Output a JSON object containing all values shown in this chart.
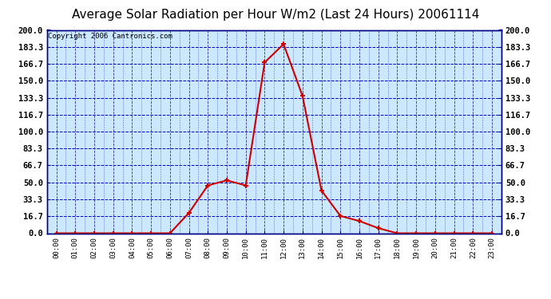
{
  "title": "Average Solar Radiation per Hour W/m2 (Last 24 Hours) 20061114",
  "copyright": "Copyright 2006 Cantronics.com",
  "hours": [
    0,
    1,
    2,
    3,
    4,
    5,
    6,
    7,
    8,
    9,
    10,
    11,
    12,
    13,
    14,
    15,
    16,
    17,
    18,
    19,
    20,
    21,
    22,
    23
  ],
  "hour_labels": [
    "00:00",
    "01:00",
    "02:00",
    "03:00",
    "04:00",
    "05:00",
    "06:00",
    "07:00",
    "08:00",
    "09:00",
    "10:00",
    "11:00",
    "12:00",
    "13:00",
    "14:00",
    "15:00",
    "16:00",
    "17:00",
    "18:00",
    "19:00",
    "20:00",
    "21:00",
    "22:00",
    "23:00"
  ],
  "values": [
    0,
    0,
    0,
    0,
    0,
    0,
    0,
    20,
    47,
    52,
    47,
    168,
    186,
    135,
    42,
    17,
    12,
    5,
    0,
    0,
    0,
    0,
    0,
    0
  ],
  "ylim": [
    0,
    200
  ],
  "yticks": [
    0.0,
    16.7,
    33.3,
    50.0,
    66.7,
    83.3,
    100.0,
    116.7,
    133.3,
    150.0,
    166.7,
    183.3,
    200.0
  ],
  "ytick_labels": [
    "0.0",
    "16.7",
    "33.3",
    "50.0",
    "66.7",
    "83.3",
    "100.0",
    "116.7",
    "133.3",
    "150.0",
    "166.7",
    "183.3",
    "200.0"
  ],
  "line_color": "#cc0000",
  "marker_color": "#cc0000",
  "bg_color": "#ffffff",
  "plot_bg_color": "#cce8ff",
  "grid_color_h": "#0000cc",
  "grid_color_v": "#333399",
  "title_fontsize": 11,
  "copyright_fontsize": 6.5
}
